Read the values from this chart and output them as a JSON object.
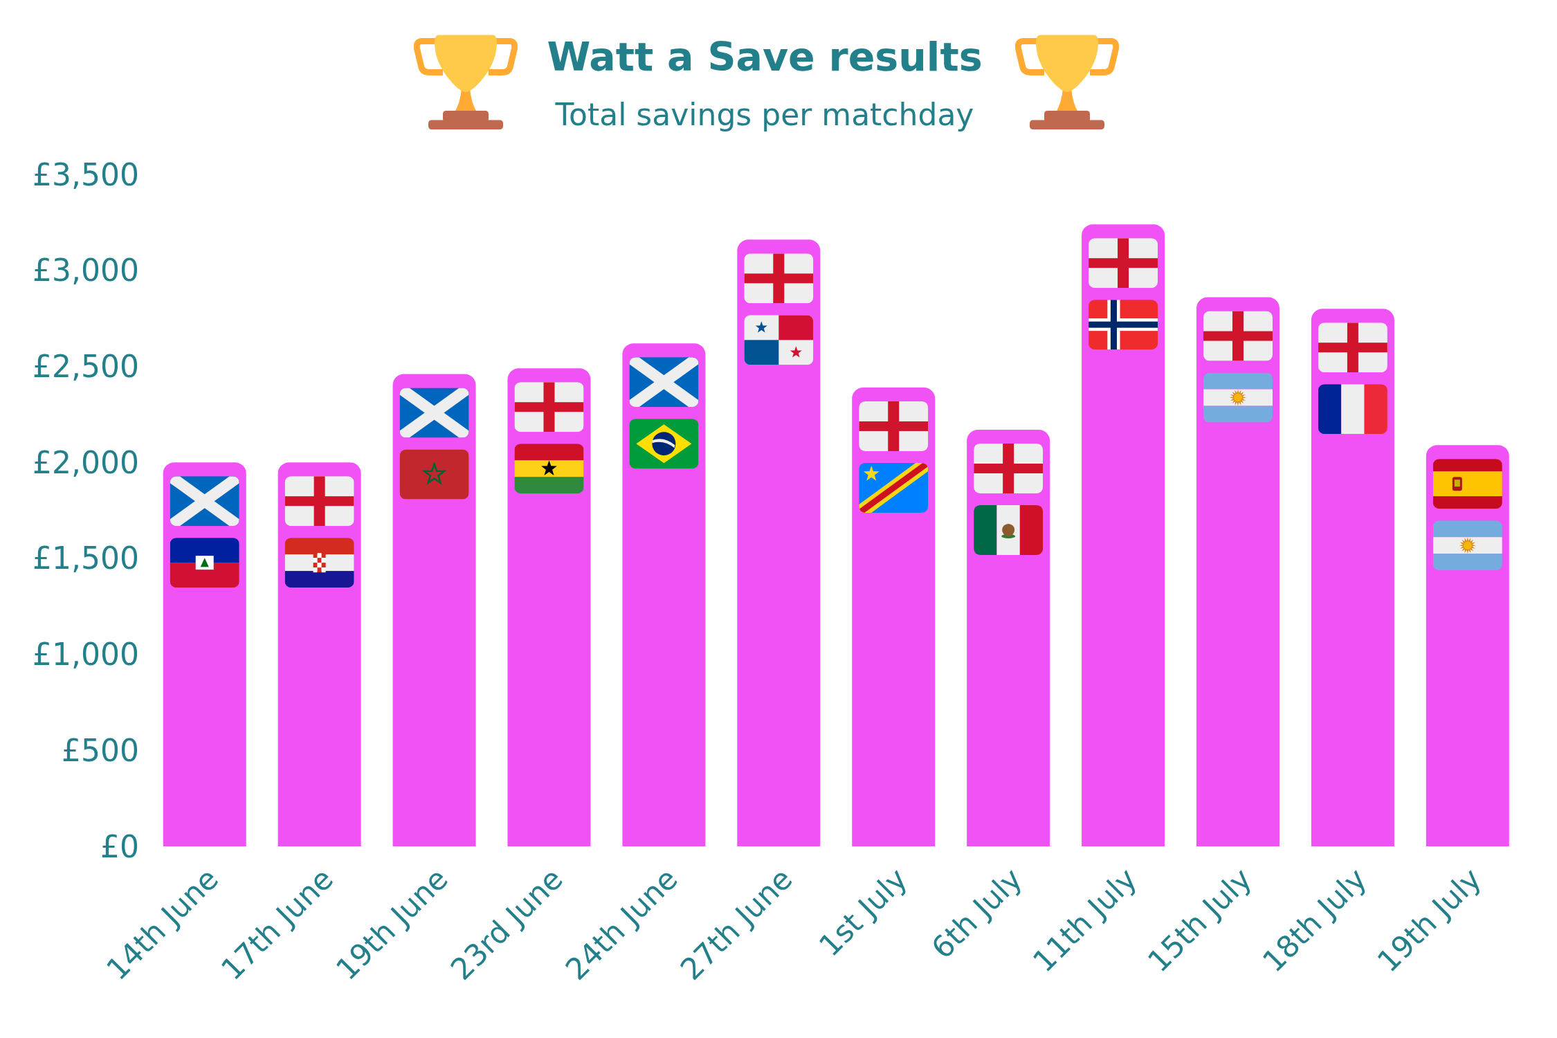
{
  "chart_data": {
    "type": "bar",
    "title": "Watt a Save results",
    "subtitle": "Total savings per matchday",
    "categories": [
      "14th June",
      "17th June",
      "19th June",
      "23rd June",
      "24th June",
      "27th June",
      "1st July",
      "6th July",
      "11th July",
      "15th July",
      "18th July",
      "19th July"
    ],
    "values": [
      2000,
      2000,
      2460,
      2490,
      2620,
      3160,
      2390,
      2170,
      3240,
      2860,
      2800,
      2090
    ],
    "color": "#f052f6",
    "ylim": [
      0,
      3500
    ],
    "yticks": [
      {
        "value": 0,
        "label": "£0"
      },
      {
        "value": 500,
        "label": "£500"
      },
      {
        "value": 1000,
        "label": "£1,000"
      },
      {
        "value": 1500,
        "label": "£1,500"
      },
      {
        "value": 2000,
        "label": "£2,000"
      },
      {
        "value": 2500,
        "label": "£2,500"
      },
      {
        "value": 3000,
        "label": "£3,000"
      },
      {
        "value": 3500,
        "label": "£3,500"
      }
    ]
  }
}
